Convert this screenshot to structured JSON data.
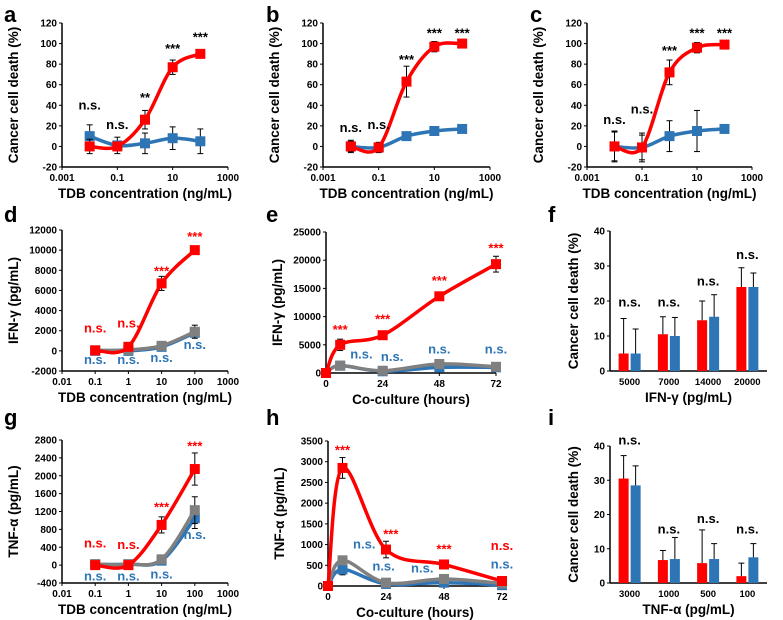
{
  "colors": {
    "treated": "#ff0000",
    "control": "#2e75b6",
    "other": "#808080",
    "axis": "#000000"
  },
  "chart_data": [
    {
      "panel": "a",
      "type": "line",
      "xscale": "log",
      "xlim": [
        0.001,
        1000
      ],
      "ylim": [
        -20,
        120
      ],
      "xticks": [
        "0.001",
        "0.1",
        "10",
        "1000"
      ],
      "yticks": [
        "-20",
        "0",
        "20",
        "40",
        "60",
        "80",
        "100",
        "120"
      ],
      "xlabel": "TDB concentration (ng/mL)",
      "ylabel": "Cancer cell death (%)",
      "x": [
        0.01,
        0.1,
        1,
        10,
        100
      ],
      "series": [
        {
          "color": "control",
          "values": [
            10,
            1,
            3,
            8,
            5
          ],
          "err": [
            11,
            8,
            10,
            11,
            12
          ]
        },
        {
          "color": "treated",
          "values": [
            0,
            0,
            26,
            77,
            90
          ],
          "err": [
            7,
            2,
            9,
            7,
            4
          ]
        }
      ],
      "annotations": [
        {
          "text": "n.s.",
          "color": "axis",
          "x": 0.01,
          "y": 36
        },
        {
          "text": "n.s.",
          "color": "axis",
          "x": 0.1,
          "y": 17
        },
        {
          "text": "**",
          "color": "axis",
          "x": 1,
          "y": 43
        },
        {
          "text": "***",
          "color": "axis",
          "x": 10,
          "y": 91
        },
        {
          "text": "***",
          "color": "axis",
          "x": 100,
          "y": 102
        }
      ]
    },
    {
      "panel": "b",
      "type": "line",
      "xscale": "log",
      "xlim": [
        0.001,
        1000
      ],
      "ylim": [
        -20,
        120
      ],
      "xticks": [
        "0.001",
        "0.1",
        "10",
        "1000"
      ],
      "yticks": [
        "-20",
        "0",
        "20",
        "40",
        "60",
        "80",
        "100",
        "120"
      ],
      "xlabel": "TDB concentration (ng/mL)",
      "ylabel": "Cancer cell death (%)",
      "x": [
        0.01,
        0.1,
        1,
        10,
        100
      ],
      "series": [
        {
          "color": "control",
          "values": [
            0,
            -1,
            10,
            15,
            17
          ],
          "err": [
            6,
            5,
            3,
            3,
            3
          ]
        },
        {
          "color": "treated",
          "values": [
            0,
            -1,
            63,
            97,
            100
          ],
          "err": [
            5,
            4,
            15,
            5,
            3
          ]
        }
      ],
      "annotations": [
        {
          "text": "n.s.",
          "color": "axis",
          "x": 0.01,
          "y": 14
        },
        {
          "text": "n.s.",
          "color": "axis",
          "x": 0.1,
          "y": 17
        },
        {
          "text": "***",
          "color": "axis",
          "x": 1,
          "y": 80
        },
        {
          "text": "***",
          "color": "axis",
          "x": 10,
          "y": 106
        },
        {
          "text": "***",
          "color": "axis",
          "x": 100,
          "y": 106
        }
      ]
    },
    {
      "panel": "c",
      "type": "line",
      "xscale": "log",
      "xlim": [
        0.001,
        1000
      ],
      "ylim": [
        -20,
        120
      ],
      "xticks": [
        "0.001",
        "0.1",
        "10",
        "1000"
      ],
      "yticks": [
        "-20",
        "0",
        "20",
        "40",
        "60",
        "80",
        "100",
        "120"
      ],
      "xlabel": "TDB concentration (ng/mL)",
      "ylabel": "Cancer cell death (%)",
      "x": [
        0.01,
        0.1,
        1,
        10,
        100
      ],
      "series": [
        {
          "color": "control",
          "values": [
            0,
            -1,
            10,
            15,
            17
          ],
          "err": [
            15,
            14,
            15,
            20,
            3
          ]
        },
        {
          "color": "treated",
          "values": [
            0,
            -1,
            72,
            96,
            99
          ],
          "err": [
            14,
            12,
            12,
            5,
            3
          ]
        }
      ],
      "annotations": [
        {
          "text": "n.s.",
          "color": "axis",
          "x": 0.01,
          "y": 22
        },
        {
          "text": "n.s.",
          "color": "axis",
          "x": 0.1,
          "y": 32
        },
        {
          "text": "***",
          "color": "axis",
          "x": 1,
          "y": 89
        },
        {
          "text": "***",
          "color": "axis",
          "x": 10,
          "y": 106
        },
        {
          "text": "***",
          "color": "axis",
          "x": 100,
          "y": 106
        }
      ]
    },
    {
      "panel": "d",
      "type": "line",
      "xscale": "log",
      "xlim": [
        0.01,
        1000
      ],
      "ylim": [
        -2000,
        12000
      ],
      "xticks": [
        "0.01",
        "0.1",
        "1",
        "10",
        "100",
        "1000"
      ],
      "yticks": [
        "-2000",
        "0",
        "2000",
        "4000",
        "6000",
        "8000",
        "10000",
        "12000"
      ],
      "xlabel": "TDB concentration (ng/mL)",
      "ylabel": "IFN-γ (pg/mL)",
      "x": [
        0.1,
        1,
        10,
        100
      ],
      "series": [
        {
          "color": "control",
          "values": [
            0,
            0,
            400,
            1800
          ],
          "err": [
            0,
            0,
            0,
            0
          ]
        },
        {
          "color": "other",
          "values": [
            50,
            100,
            500,
            1900
          ],
          "err": [
            100,
            100,
            200,
            650
          ]
        },
        {
          "color": "treated",
          "values": [
            50,
            400,
            6700,
            10000
          ],
          "err": [
            100,
            100,
            700,
            200
          ]
        }
      ],
      "annotations": [
        {
          "text": "n.s.",
          "color": "treated",
          "x": 0.1,
          "y": 1800
        },
        {
          "text": "n.s.",
          "color": "treated",
          "x": 1,
          "y": 2300
        },
        {
          "text": "***",
          "color": "treated",
          "x": 10,
          "y": 7500
        },
        {
          "text": "***",
          "color": "treated",
          "x": 100,
          "y": 10900
        },
        {
          "text": "n.s.",
          "color": "control",
          "x": 0.1,
          "y": -1300
        },
        {
          "text": "n.s.",
          "color": "control",
          "x": 1,
          "y": -1300
        },
        {
          "text": "n.s.",
          "color": "control",
          "x": 10,
          "y": -1100
        },
        {
          "text": "n.s.",
          "color": "control",
          "x": 100,
          "y": 200
        }
      ]
    },
    {
      "panel": "e",
      "type": "line",
      "xscale": "linear",
      "xlim": [
        0,
        72
      ],
      "ylim": [
        0,
        25000
      ],
      "xticks": [
        "0",
        "24",
        "48",
        "72"
      ],
      "yticks": [
        "0",
        "5000",
        "10000",
        "15000",
        "20000",
        "25000"
      ],
      "xlabel": "Co-culture (hours)",
      "ylabel": "IFN-γ (pg/mL)",
      "x": [
        0,
        6,
        24,
        48,
        72
      ],
      "series": [
        {
          "color": "control",
          "values": [
            0,
            1300,
            300,
            1000,
            1000
          ],
          "err": [
            0,
            0,
            0,
            0,
            0
          ]
        },
        {
          "color": "other",
          "values": [
            0,
            1300,
            400,
            1600,
            1100
          ],
          "err": [
            0,
            0,
            0,
            0,
            0
          ]
        },
        {
          "color": "treated",
          "values": [
            0,
            5000,
            6700,
            13600,
            19300
          ],
          "err": [
            0,
            1000,
            300,
            300,
            1400
          ]
        }
      ],
      "annotations": [
        {
          "text": "***",
          "color": "treated",
          "x": 6,
          "y": 6900
        },
        {
          "text": "***",
          "color": "treated",
          "x": 24,
          "y": 8800
        },
        {
          "text": "***",
          "color": "treated",
          "x": 48,
          "y": 15600
        },
        {
          "text": "***",
          "color": "treated",
          "x": 72,
          "y": 21400
        },
        {
          "text": "n.s.",
          "color": "control",
          "x": 15,
          "y": 2600
        },
        {
          "text": "n.s.",
          "color": "control",
          "x": 28,
          "y": 2100
        },
        {
          "text": "n.s.",
          "color": "control",
          "x": 48,
          "y": 3500
        },
        {
          "text": "n.s.",
          "color": "control",
          "x": 72,
          "y": 3500
        }
      ]
    },
    {
      "panel": "f",
      "type": "bar",
      "ylim": [
        0,
        40
      ],
      "yticks": [
        "0",
        "10",
        "20",
        "30",
        "40"
      ],
      "categories": [
        "5000",
        "7000",
        "14000",
        "20000"
      ],
      "xlabel": "IFN-γ (pg/mL)",
      "ylabel": "Cancer cell death (%)",
      "series": [
        {
          "color": "treated",
          "values": [
            5,
            10.5,
            14.5,
            24
          ],
          "err": [
            10,
            5,
            5.5,
            5.5
          ]
        },
        {
          "color": "control",
          "values": [
            5,
            10,
            15.5,
            24
          ],
          "err": [
            7,
            5.3,
            6.3,
            4
          ]
        }
      ],
      "annotations": [
        {
          "text": "n.s.",
          "color": "axis",
          "category": 0,
          "y": 18.5
        },
        {
          "text": "n.s.",
          "color": "axis",
          "category": 1,
          "y": 18.5
        },
        {
          "text": "n.s.",
          "color": "axis",
          "category": 2,
          "y": 24.5
        },
        {
          "text": "n.s.",
          "color": "axis",
          "category": 3,
          "y": 32
        }
      ]
    },
    {
      "panel": "g",
      "type": "line",
      "xscale": "log",
      "xlim": [
        0.01,
        1000
      ],
      "ylim": [
        -400,
        2800
      ],
      "xticks": [
        "0.01",
        "0.1",
        "1",
        "10",
        "100",
        "1000"
      ],
      "yticks": [
        "-400",
        "0",
        "400",
        "800",
        "1200",
        "1600",
        "2000",
        "2400",
        "2800"
      ],
      "xlabel": "TDB concentration (ng/mL)",
      "ylabel": "TNF-α (pg/mL)",
      "x": [
        0.1,
        1,
        10,
        100
      ],
      "series": [
        {
          "color": "control",
          "values": [
            20,
            20,
            100,
            1050
          ],
          "err": [
            0,
            0,
            0,
            230
          ]
        },
        {
          "color": "other",
          "values": [
            20,
            20,
            130,
            1230
          ],
          "err": [
            0,
            0,
            0,
            300
          ]
        },
        {
          "color": "treated",
          "values": [
            0,
            0,
            900,
            2150
          ],
          "err": [
            0,
            0,
            180,
            360
          ]
        }
      ],
      "annotations": [
        {
          "text": "n.s.",
          "color": "treated",
          "x": 0.1,
          "y": 400
        },
        {
          "text": "n.s.",
          "color": "treated",
          "x": 1,
          "y": 360
        },
        {
          "text": "***",
          "color": "treated",
          "x": 10,
          "y": 1200
        },
        {
          "text": "***",
          "color": "treated",
          "x": 100,
          "y": 2560
        },
        {
          "text": "n.s.",
          "color": "control",
          "x": 0.1,
          "y": -340
        },
        {
          "text": "n.s.",
          "color": "control",
          "x": 1,
          "y": -340
        },
        {
          "text": "n.s.",
          "color": "control",
          "x": 10,
          "y": -300
        },
        {
          "text": "n.s.",
          "color": "control",
          "x": 100,
          "y": 580
        }
      ]
    },
    {
      "panel": "h",
      "type": "line",
      "xscale": "linear",
      "xlim": [
        0,
        72
      ],
      "ylim": [
        0,
        3500
      ],
      "xticks": [
        "0",
        "24",
        "48",
        "72"
      ],
      "yticks": [
        "0",
        "500",
        "1000",
        "1500",
        "2000",
        "2500",
        "3000",
        "3500"
      ],
      "xlabel": "Co-culture (hours)",
      "ylabel": "TNF-α (pg/mL)",
      "x": [
        0,
        6,
        24,
        48,
        72
      ],
      "series": [
        {
          "color": "control",
          "values": [
            0,
            400,
            50,
            80,
            20
          ],
          "err": [
            0,
            130,
            0,
            0,
            0
          ]
        },
        {
          "color": "other",
          "values": [
            0,
            620,
            80,
            170,
            60
          ],
          "err": [
            0,
            100,
            0,
            0,
            0
          ]
        },
        {
          "color": "treated",
          "values": [
            0,
            2850,
            880,
            520,
            120
          ],
          "err": [
            0,
            250,
            200,
            50,
            50
          ]
        }
      ],
      "annotations": [
        {
          "text": "***",
          "color": "treated",
          "x": 6,
          "y": 3180
        },
        {
          "text": "***",
          "color": "treated",
          "x": 26,
          "y": 1150
        },
        {
          "text": "***",
          "color": "treated",
          "x": 48,
          "y": 790
        },
        {
          "text": "n.s.",
          "color": "treated",
          "x": 72,
          "y": 870
        },
        {
          "text": "n.s.",
          "color": "control",
          "x": 15,
          "y": 900
        },
        {
          "text": "n.s.",
          "color": "control",
          "x": 23,
          "y": 380
        },
        {
          "text": "n.s.",
          "color": "control",
          "x": 39,
          "y": 320
        },
        {
          "text": "n.s.",
          "color": "control",
          "x": 72,
          "y": 420
        }
      ]
    },
    {
      "panel": "i",
      "type": "bar",
      "ylim": [
        0,
        40
      ],
      "yticks": [
        "0",
        "10",
        "20",
        "30",
        "40"
      ],
      "categories": [
        "3000",
        "1000",
        "500",
        "100"
      ],
      "xlabel": "TNF-α (pg/mL)",
      "ylabel": "Cancer cell death (%)",
      "series": [
        {
          "color": "treated",
          "values": [
            30.5,
            6.7,
            5.8,
            2
          ],
          "err": [
            6.7,
            2.8,
            9.7,
            3.8
          ]
        },
        {
          "color": "control",
          "values": [
            28.5,
            7,
            7,
            7.5
          ],
          "err": [
            5.7,
            6.3,
            4.5,
            4
          ]
        }
      ],
      "annotations": [
        {
          "text": "n.s.",
          "color": "axis",
          "category": 0,
          "y": 40.5
        },
        {
          "text": "n.s.",
          "color": "axis",
          "category": 1,
          "y": 14.5
        },
        {
          "text": "n.s.",
          "color": "axis",
          "category": 2,
          "y": 17.5
        },
        {
          "text": "n.s.",
          "color": "axis",
          "category": 3,
          "y": 14.5
        }
      ]
    }
  ]
}
